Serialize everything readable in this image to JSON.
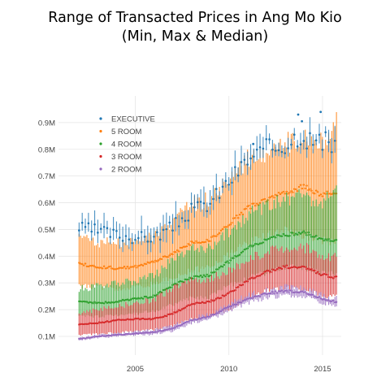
{
  "chart_data": {
    "type": "line",
    "title": "Range of Transacted Prices in Ang Mo Kio",
    "subtitle": "(Min, Max & Median)",
    "xlabel": "",
    "ylabel": "",
    "xlim": [
      2000.9,
      2016.0
    ],
    "ylim": [
      30000,
      1000000
    ],
    "xticks": [
      2005,
      2010,
      2015
    ],
    "yticks": [
      100000,
      200000,
      300000,
      400000,
      500000,
      600000,
      700000,
      800000,
      900000
    ],
    "ytick_labels": [
      "0.1M",
      "0.2M",
      "0.3M",
      "0.4M",
      "0.5M",
      "0.6M",
      "0.7M",
      "0.8M",
      "0.9M"
    ],
    "grid": true,
    "legend_position": "top-left",
    "x_start": 2002.0,
    "x_step_years": 0.0833,
    "series": [
      {
        "name": "EXECUTIVE",
        "color": "#1f77b4",
        "marker_anchors": [
          [
            2002.0,
            505000
          ],
          [
            2003.0,
            495000
          ],
          [
            2004.0,
            480000
          ],
          [
            2005.0,
            470000
          ],
          [
            2006.0,
            470000
          ],
          [
            2007.0,
            510000
          ],
          [
            2008.0,
            570000
          ],
          [
            2009.0,
            600000
          ],
          [
            2010.0,
            680000
          ],
          [
            2011.0,
            760000
          ],
          [
            2012.0,
            800000
          ],
          [
            2013.0,
            820000
          ],
          [
            2013.8,
            860000
          ],
          [
            2014.5,
            830000
          ],
          [
            2015.4,
            820000
          ]
        ],
        "outliers": [
          [
            2013.7,
            930000
          ],
          [
            2014.9,
            940000
          ],
          [
            2013.9,
            905000
          ],
          [
            2011.3,
            820000
          ]
        ]
      },
      {
        "name": "5 ROOM",
        "color": "#ff7f0e",
        "median_anchors": [
          [
            2002.0,
            370000
          ],
          [
            2003.0,
            360000
          ],
          [
            2004.0,
            355000
          ],
          [
            2005.0,
            360000
          ],
          [
            2006.0,
            380000
          ],
          [
            2007.0,
            410000
          ],
          [
            2008.0,
            450000
          ],
          [
            2009.0,
            460000
          ],
          [
            2010.0,
            520000
          ],
          [
            2011.0,
            580000
          ],
          [
            2012.0,
            610000
          ],
          [
            2013.0,
            640000
          ],
          [
            2014.0,
            660000
          ],
          [
            2015.0,
            630000
          ],
          [
            2015.7,
            640000
          ]
        ],
        "max_anchors": [
          [
            2002.0,
            470000
          ],
          [
            2003.0,
            460000
          ],
          [
            2004.0,
            450000
          ],
          [
            2005.0,
            460000
          ],
          [
            2006.0,
            480000
          ],
          [
            2007.0,
            530000
          ],
          [
            2008.0,
            600000
          ],
          [
            2009.0,
            620000
          ],
          [
            2010.0,
            690000
          ],
          [
            2011.0,
            770000
          ],
          [
            2012.0,
            800000
          ],
          [
            2013.0,
            830000
          ],
          [
            2014.0,
            850000
          ],
          [
            2015.0,
            830000
          ],
          [
            2015.7,
            910000
          ]
        ],
        "min_anchors": [
          [
            2002.0,
            290000
          ],
          [
            2003.0,
            285000
          ],
          [
            2004.0,
            280000
          ],
          [
            2005.0,
            285000
          ],
          [
            2006.0,
            300000
          ],
          [
            2007.0,
            320000
          ],
          [
            2008.0,
            350000
          ],
          [
            2009.0,
            360000
          ],
          [
            2010.0,
            410000
          ],
          [
            2011.0,
            450000
          ],
          [
            2012.0,
            480000
          ],
          [
            2013.0,
            500000
          ],
          [
            2014.0,
            480000
          ],
          [
            2015.0,
            460000
          ],
          [
            2015.7,
            450000
          ]
        ]
      },
      {
        "name": "4 ROOM",
        "color": "#2ca02c",
        "median_anchors": [
          [
            2002.0,
            230000
          ],
          [
            2003.0,
            225000
          ],
          [
            2004.0,
            230000
          ],
          [
            2005.0,
            240000
          ],
          [
            2006.0,
            250000
          ],
          [
            2007.0,
            290000
          ],
          [
            2008.0,
            320000
          ],
          [
            2009.0,
            330000
          ],
          [
            2010.0,
            380000
          ],
          [
            2011.0,
            430000
          ],
          [
            2012.0,
            460000
          ],
          [
            2013.0,
            480000
          ],
          [
            2014.0,
            490000
          ],
          [
            2015.0,
            460000
          ],
          [
            2015.7,
            460000
          ]
        ],
        "max_anchors": [
          [
            2002.0,
            280000
          ],
          [
            2003.0,
            290000
          ],
          [
            2004.0,
            300000
          ],
          [
            2005.0,
            310000
          ],
          [
            2006.0,
            330000
          ],
          [
            2007.0,
            390000
          ],
          [
            2008.0,
            430000
          ],
          [
            2009.0,
            440000
          ],
          [
            2010.0,
            500000
          ],
          [
            2011.0,
            560000
          ],
          [
            2012.0,
            590000
          ],
          [
            2013.0,
            620000
          ],
          [
            2014.0,
            640000
          ],
          [
            2015.0,
            600000
          ],
          [
            2015.7,
            690000
          ]
        ],
        "min_anchors": [
          [
            2002.0,
            175000
          ],
          [
            2003.0,
            175000
          ],
          [
            2004.0,
            180000
          ],
          [
            2005.0,
            185000
          ],
          [
            2006.0,
            195000
          ],
          [
            2007.0,
            220000
          ],
          [
            2008.0,
            245000
          ],
          [
            2009.0,
            250000
          ],
          [
            2010.0,
            290000
          ],
          [
            2011.0,
            320000
          ],
          [
            2012.0,
            340000
          ],
          [
            2013.0,
            360000
          ],
          [
            2014.0,
            360000
          ],
          [
            2015.0,
            340000
          ],
          [
            2015.7,
            340000
          ]
        ]
      },
      {
        "name": "3 ROOM",
        "color": "#d62728",
        "median_anchors": [
          [
            2002.0,
            145000
          ],
          [
            2003.0,
            150000
          ],
          [
            2004.0,
            160000
          ],
          [
            2005.0,
            165000
          ],
          [
            2006.0,
            165000
          ],
          [
            2007.0,
            185000
          ],
          [
            2008.0,
            220000
          ],
          [
            2009.0,
            230000
          ],
          [
            2010.0,
            260000
          ],
          [
            2011.0,
            310000
          ],
          [
            2012.0,
            340000
          ],
          [
            2013.0,
            360000
          ],
          [
            2014.0,
            360000
          ],
          [
            2015.0,
            330000
          ],
          [
            2015.7,
            320000
          ]
        ],
        "max_anchors": [
          [
            2002.0,
            190000
          ],
          [
            2003.0,
            200000
          ],
          [
            2004.0,
            215000
          ],
          [
            2005.0,
            225000
          ],
          [
            2006.0,
            240000
          ],
          [
            2007.0,
            280000
          ],
          [
            2008.0,
            310000
          ],
          [
            2009.0,
            320000
          ],
          [
            2010.0,
            350000
          ],
          [
            2011.0,
            390000
          ],
          [
            2012.0,
            420000
          ],
          [
            2013.0,
            440000
          ],
          [
            2014.0,
            440000
          ],
          [
            2015.0,
            400000
          ],
          [
            2015.7,
            400000
          ]
        ],
        "min_anchors": [
          [
            2002.0,
            105000
          ],
          [
            2003.0,
            110000
          ],
          [
            2004.0,
            115000
          ],
          [
            2005.0,
            120000
          ],
          [
            2006.0,
            125000
          ],
          [
            2007.0,
            140000
          ],
          [
            2008.0,
            165000
          ],
          [
            2009.0,
            175000
          ],
          [
            2010.0,
            200000
          ],
          [
            2011.0,
            240000
          ],
          [
            2012.0,
            270000
          ],
          [
            2013.0,
            280000
          ],
          [
            2014.0,
            280000
          ],
          [
            2015.0,
            250000
          ],
          [
            2015.7,
            250000
          ]
        ]
      },
      {
        "name": "2 ROOM",
        "color": "#9467bd",
        "median_anchors": [
          [
            2002.0,
            90000
          ],
          [
            2003.0,
            100000
          ],
          [
            2004.0,
            105000
          ],
          [
            2005.0,
            110000
          ],
          [
            2006.0,
            115000
          ],
          [
            2007.0,
            130000
          ],
          [
            2008.0,
            160000
          ],
          [
            2009.0,
            175000
          ],
          [
            2010.0,
            210000
          ],
          [
            2011.0,
            240000
          ],
          [
            2012.0,
            260000
          ],
          [
            2013.0,
            270000
          ],
          [
            2014.0,
            265000
          ],
          [
            2015.0,
            240000
          ],
          [
            2015.7,
            230000
          ]
        ],
        "max_anchors": [
          [
            2002.0,
            95000
          ],
          [
            2003.0,
            105000
          ],
          [
            2004.0,
            112000
          ],
          [
            2005.0,
            118000
          ],
          [
            2006.0,
            125000
          ],
          [
            2007.0,
            140000
          ],
          [
            2008.0,
            170000
          ],
          [
            2009.0,
            185000
          ],
          [
            2010.0,
            220000
          ],
          [
            2011.0,
            255000
          ],
          [
            2012.0,
            275000
          ],
          [
            2013.0,
            285000
          ],
          [
            2014.0,
            280000
          ],
          [
            2015.0,
            255000
          ],
          [
            2015.7,
            245000
          ]
        ],
        "min_anchors": [
          [
            2002.0,
            85000
          ],
          [
            2003.0,
            95000
          ],
          [
            2004.0,
            100000
          ],
          [
            2005.0,
            105000
          ],
          [
            2006.0,
            108000
          ],
          [
            2007.0,
            120000
          ],
          [
            2008.0,
            150000
          ],
          [
            2009.0,
            165000
          ],
          [
            2010.0,
            195000
          ],
          [
            2011.0,
            225000
          ],
          [
            2012.0,
            245000
          ],
          [
            2013.0,
            255000
          ],
          [
            2014.0,
            250000
          ],
          [
            2015.0,
            225000
          ],
          [
            2015.7,
            215000
          ]
        ]
      }
    ]
  }
}
